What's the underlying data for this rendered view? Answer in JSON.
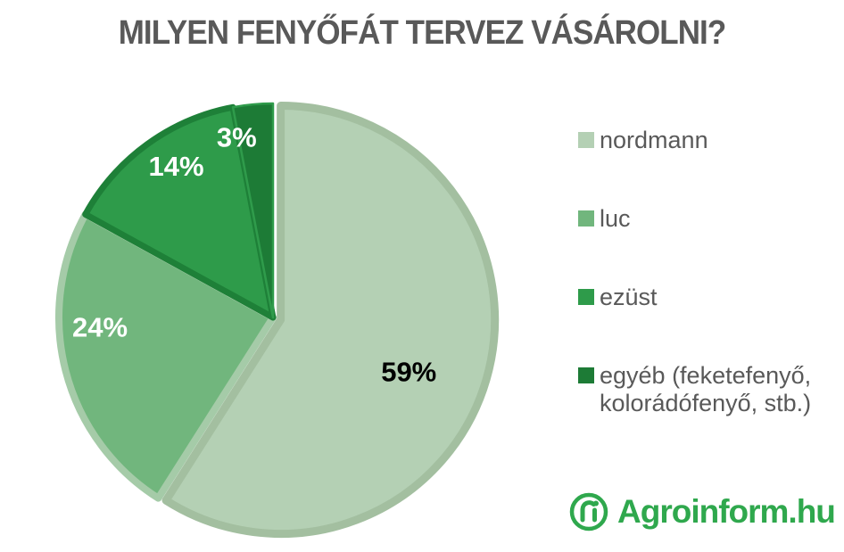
{
  "title": {
    "text": "MILYEN FENYŐFÁT TERVEZ VÁSÁROLNI?",
    "color": "#595959"
  },
  "chart_data": {
    "type": "pie",
    "title": "MILYEN FENYŐFÁT TERVEZ VÁSÁROLNI?",
    "start_angle_deg_from_top": 0,
    "direction": "clockwise",
    "legend_position": "right",
    "categories": [
      "nordmann",
      "luc",
      "ezüst",
      "egyéb (feketefenyő, kolorádófenyő, stb.)"
    ],
    "values": [
      59,
      24,
      14,
      3
    ],
    "slices": [
      {
        "name": "nordmann",
        "value": 59,
        "label": "59%",
        "fill": "#b4d0b4",
        "border": "#a3bfa0",
        "border_width": 9,
        "label_color": "#000000",
        "label_angle": 113,
        "label_radius": 0.65,
        "explode": 9
      },
      {
        "name": "luc",
        "value": 24,
        "label": "24%",
        "fill": "#71b67d",
        "border": "#a5cba8",
        "border_width": 8,
        "label_color": "#ffffff",
        "label_angle": 266,
        "label_radius": 0.81,
        "explode": 0
      },
      {
        "name": "ezust",
        "value": 14,
        "label": "14%",
        "fill": "#2e9b4a",
        "border": "#1e8038",
        "border_width": 7,
        "label_color": "#ffffff",
        "label_angle": 327,
        "label_radius": 0.83,
        "explode": 0
      },
      {
        "name": "egyeb",
        "value": 3,
        "label": "3%",
        "fill": "#1d7b36",
        "border": "#2f9b4b",
        "border_width": 2.5,
        "label_color": "#ffffff",
        "label_angle": 348.5,
        "label_radius": 0.85,
        "explode": 0
      }
    ]
  },
  "legend": {
    "text_color": "#595959",
    "items": [
      {
        "name": "nordmann",
        "label": "nordmann",
        "color": "#b4d0b4"
      },
      {
        "name": "luc",
        "label": "luc",
        "color": "#71b67d"
      },
      {
        "name": "ezust",
        "label": "ezüst",
        "color": "#2e9b4a"
      },
      {
        "name": "egyeb",
        "label": "egyéb (feketefenyő, kolorádófenyő, stb.)",
        "color": "#1d7b36"
      }
    ]
  },
  "logo": {
    "text": "Agroinform.hu",
    "color": "#2fa84d",
    "icon": "agroinform-leaf-i-icon"
  }
}
